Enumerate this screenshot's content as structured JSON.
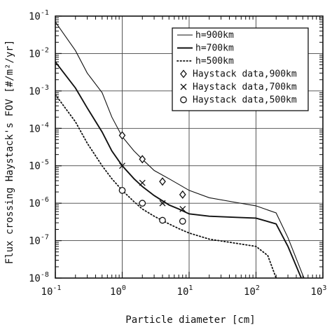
{
  "chart_data": {
    "type": "line",
    "xscale": "log",
    "yscale": "log",
    "xlim": [
      0.1,
      1000
    ],
    "ylim": [
      1e-08,
      0.1
    ],
    "grid": true,
    "legend_placement": "top-right",
    "xlabel": "Particle diameter [cm]",
    "ylabel": "Flux crossing Haystack's FOV [#/m²/yr]",
    "x_tick_labels": [
      {
        "base": "10",
        "exp": "-1"
      },
      {
        "base": "10",
        "exp": "0"
      },
      {
        "base": "10",
        "exp": "1"
      },
      {
        "base": "10",
        "exp": "2"
      },
      {
        "base": "10",
        "exp": "3"
      }
    ],
    "y_tick_labels": [
      {
        "base": "10",
        "exp": "-8"
      },
      {
        "base": "10",
        "exp": "-7"
      },
      {
        "base": "10",
        "exp": "-6"
      },
      {
        "base": "10",
        "exp": "-5"
      },
      {
        "base": "10",
        "exp": "-4"
      },
      {
        "base": "10",
        "exp": "-3"
      },
      {
        "base": "10",
        "exp": "-2"
      },
      {
        "base": "10",
        "exp": "-1"
      }
    ],
    "series": [
      {
        "name": "h=900km",
        "kind": "line",
        "style": "thin",
        "points": [
          [
            0.1,
            0.07
          ],
          [
            0.2,
            0.012
          ],
          [
            0.3,
            0.003
          ],
          [
            0.5,
            0.0009
          ],
          [
            0.7,
            0.0002
          ],
          [
            1,
            6e-05
          ],
          [
            1.5,
            2.5e-05
          ],
          [
            2,
            1.5e-05
          ],
          [
            3,
            7.5e-06
          ],
          [
            5,
            4.5e-06
          ],
          [
            7,
            3.2e-06
          ],
          [
            10,
            2.2e-06
          ],
          [
            20,
            1.4e-06
          ],
          [
            50,
            1.05e-06
          ],
          [
            100,
            8.5e-07
          ],
          [
            200,
            5.5e-07
          ],
          [
            300,
            1.2e-07
          ],
          [
            500,
            1.2e-08
          ],
          [
            600,
            6e-09
          ]
        ]
      },
      {
        "name": "h=700km",
        "kind": "line",
        "style": "thick",
        "points": [
          [
            0.1,
            0.006
          ],
          [
            0.2,
            0.0012
          ],
          [
            0.3,
            0.00035
          ],
          [
            0.5,
            8e-05
          ],
          [
            0.7,
            2.5e-05
          ],
          [
            1,
            1e-05
          ],
          [
            1.5,
            4.5e-06
          ],
          [
            2,
            2.8e-06
          ],
          [
            3,
            1.6e-06
          ],
          [
            5,
            9e-07
          ],
          [
            7,
            7e-07
          ],
          [
            10,
            5.2e-07
          ],
          [
            20,
            4.5e-07
          ],
          [
            50,
            4.2e-07
          ],
          [
            100,
            4e-07
          ],
          [
            200,
            2.8e-07
          ],
          [
            300,
            7e-08
          ],
          [
            500,
            8e-09
          ],
          [
            600,
            5e-09
          ]
        ]
      },
      {
        "name": "h=500km",
        "kind": "line",
        "style": "dotted",
        "points": [
          [
            0.1,
            0.0008
          ],
          [
            0.2,
            0.00015
          ],
          [
            0.3,
            4e-05
          ],
          [
            0.5,
            1e-05
          ],
          [
            0.7,
            4.5e-06
          ],
          [
            1,
            2.2e-06
          ],
          [
            1.5,
            1.1e-06
          ],
          [
            2,
            7e-07
          ],
          [
            3,
            4.5e-07
          ],
          [
            5,
            2.8e-07
          ],
          [
            7,
            2.1e-07
          ],
          [
            10,
            1.6e-07
          ],
          [
            20,
            1.1e-07
          ],
          [
            50,
            8.5e-08
          ],
          [
            100,
            7e-08
          ],
          [
            150,
            4e-08
          ],
          [
            200,
            1e-08
          ],
          [
            250,
            6e-09
          ]
        ]
      },
      {
        "name": "Haystack data,900km",
        "kind": "marker",
        "marker": "diamond",
        "points": [
          [
            1,
            6.5e-05
          ],
          [
            2,
            1.5e-05
          ],
          [
            4,
            3.8e-06
          ],
          [
            8,
            1.7e-06
          ]
        ]
      },
      {
        "name": "Haystack data,700km",
        "kind": "marker",
        "marker": "cross",
        "points": [
          [
            1,
            1e-05
          ],
          [
            2,
            3.5e-06
          ],
          [
            4,
            1e-06
          ],
          [
            8,
            7e-07
          ]
        ]
      },
      {
        "name": "Haystack data,500km",
        "kind": "marker",
        "marker": "circle",
        "points": [
          [
            1,
            2.2e-06
          ],
          [
            2,
            1e-06
          ],
          [
            4,
            3.5e-07
          ],
          [
            8,
            3.3e-07
          ]
        ]
      }
    ]
  }
}
